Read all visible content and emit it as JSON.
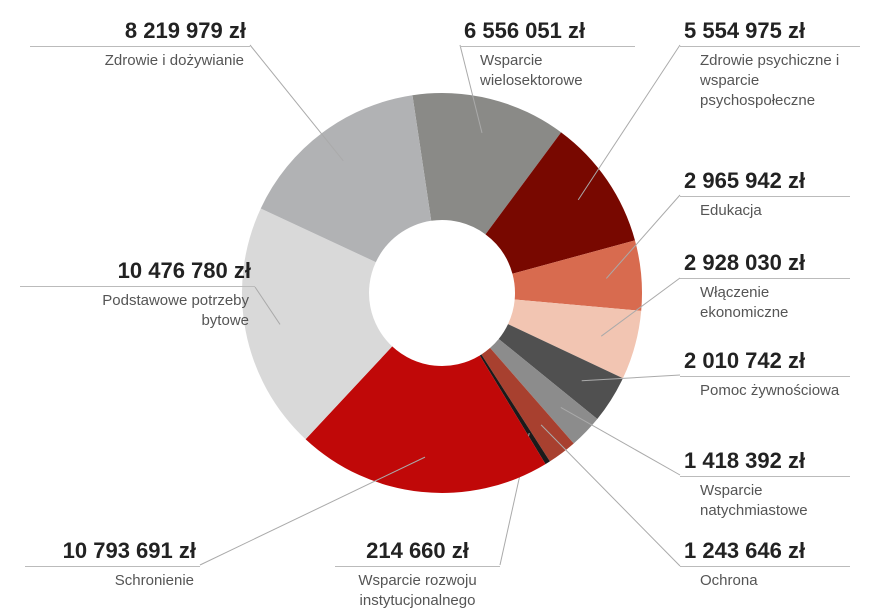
{
  "chart_data": {
    "type": "pie",
    "donut": true,
    "categories": [
      "Wsparcie wielosektorowe",
      "Zdrowie psychiczne i wsparcie psychospołeczne",
      "Edukacja",
      "Włączenie ekonomiczne",
      "Pomoc żywnościowa",
      "Wsparcie natychmiastowe",
      "Ochrona",
      "Wsparcie rozwoju instytucjonalnego",
      "Schronienie",
      "Podstawowe potrzeby bytowe",
      "Zdrowie i dożywianie"
    ],
    "values": [
      6556051,
      5554975,
      2965942,
      2928030,
      2010742,
      1418392,
      1243646,
      214660,
      10793691,
      10476780,
      8219979
    ],
    "value_labels": [
      "6 556 051 zł",
      "5 554 975 zł",
      "2 965 942 zł",
      "2 928 030 zł",
      "2 010 742 zł",
      "1 418 392 zł",
      "1 243 646 zł",
      "214 660 zł",
      "10 793 691 zł",
      "10 476 780 zł",
      "8 219 979 zł"
    ],
    "colors": [
      "#8a8a87",
      "#780800",
      "#d86b4f",
      "#f2c5b2",
      "#505050",
      "#8c8c8c",
      "#a8402f",
      "#1a1a1a",
      "#c00808",
      "#d9d9d9",
      "#b1b2b4"
    ]
  }
}
